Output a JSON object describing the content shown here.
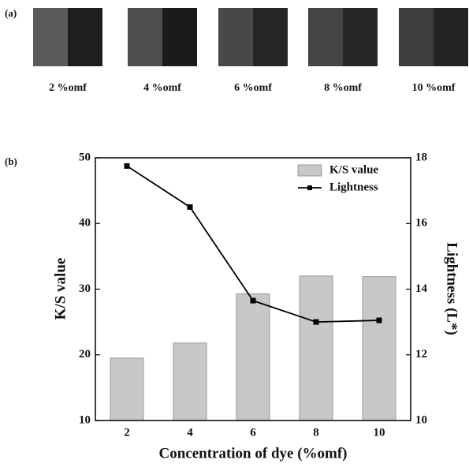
{
  "panel_a": {
    "label": "(a)",
    "swatches": [
      "2 %omf",
      "4 %omf",
      "6 %omf",
      "8 %omf",
      "10 %omf"
    ]
  },
  "chart_data": {
    "type": "bar",
    "panel_label": "(b)",
    "x_label": "Concentration of dye (%omf)",
    "y_label": "K/S value",
    "y2_label": "Lightness (L*)",
    "categories": [
      "2",
      "4",
      "6",
      "8",
      "10"
    ],
    "series": [
      {
        "name": "K/S value",
        "type": "bar",
        "color": "#c8c8c8",
        "values": [
          19.5,
          21.8,
          29.3,
          32.0,
          31.9
        ]
      },
      {
        "name": "Lightness",
        "type": "line",
        "axis": "y2",
        "color": "#000000",
        "values": [
          17.75,
          16.5,
          13.65,
          13.0,
          13.05
        ]
      }
    ],
    "ylim": [
      10,
      50
    ],
    "yticks": [
      10,
      20,
      30,
      40,
      50
    ],
    "y2lim": [
      10,
      18
    ],
    "y2ticks": [
      10,
      12,
      14,
      16,
      18
    ],
    "legend": "upper right"
  }
}
